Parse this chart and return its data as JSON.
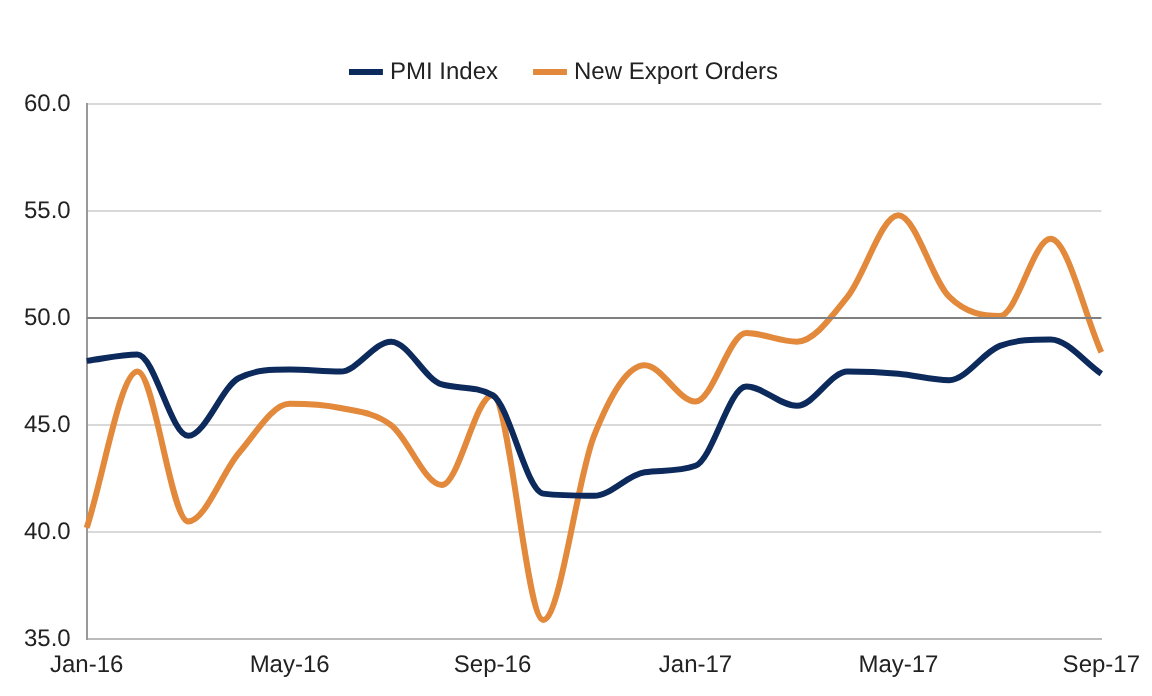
{
  "chart_data": {
    "type": "line",
    "categories": [
      "Jan-16",
      null,
      null,
      null,
      "May-16",
      null,
      null,
      null,
      "Sep-16",
      null,
      null,
      null,
      "Jan-17",
      null,
      null,
      null,
      "May-17",
      null,
      null,
      null,
      "Sep-17"
    ],
    "series": [
      {
        "name": "PMI Index",
        "color": "#0d2a5c",
        "values": [
          48.0,
          48.3,
          44.5,
          47.2,
          47.6,
          47.5,
          48.9,
          46.9,
          46.4,
          41.8,
          41.7,
          42.8,
          43.1,
          46.8,
          45.9,
          47.5,
          47.4,
          47.1,
          48.7,
          49.0,
          47.4
        ]
      },
      {
        "name": "New Export Orders",
        "color": "#e3893c",
        "values": [
          40.2,
          47.5,
          40.5,
          43.7,
          46.0,
          45.8,
          45.0,
          42.2,
          46.4,
          35.9,
          44.5,
          47.8,
          46.1,
          49.3,
          48.9,
          51.0,
          54.8,
          51.0,
          50.1,
          53.7,
          48.4
        ]
      }
    ],
    "ylim": [
      35,
      60
    ],
    "yticks": [
      {
        "value": 35,
        "label": "35.0"
      },
      {
        "value": 40,
        "label": "40.0"
      },
      {
        "value": 45,
        "label": "45.0"
      },
      {
        "value": 50,
        "label": "50.0"
      },
      {
        "value": 55,
        "label": "55.0"
      },
      {
        "value": 60,
        "label": "60.0"
      }
    ],
    "grid": "y",
    "legend": "top",
    "marker": "none",
    "line_style": "solid",
    "ref_lines": [
      {
        "axis": "y",
        "value": 50,
        "color": "#808080"
      }
    ]
  }
}
